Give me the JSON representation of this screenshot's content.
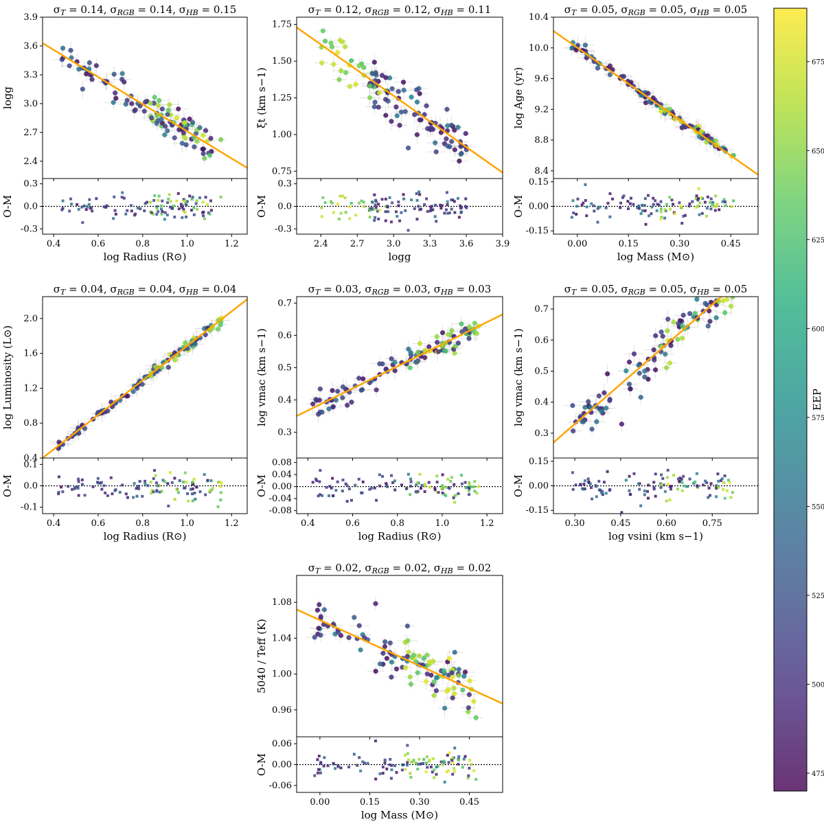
{
  "chart_data": [
    {
      "type": "scatter",
      "title": "σT = 0.14, σRGB = 0.14, σHB = 0.15",
      "title_parts": {
        "t": "0.14",
        "rgb": "0.14",
        "hb": "0.15"
      },
      "xlabel": "log Radius (R⊙)",
      "ylabel": "logg",
      "resid_label": "O-M",
      "xlim": [
        0.35,
        1.27
      ],
      "ylim": [
        2.22,
        3.9
      ],
      "rlim": [
        -0.37,
        0.37
      ],
      "xticks": [
        "0.4",
        "0.6",
        "0.8",
        "1.0",
        "1.2"
      ],
      "yticks": [
        "2.4",
        "2.7",
        "3.0",
        "3.3",
        "3.6",
        "3.9"
      ],
      "rticks": [
        "-0.3",
        "0.0",
        "0.3"
      ],
      "fit_line": [
        [
          0.35,
          3.63
        ],
        [
          1.27,
          2.33
        ]
      ],
      "scatter": 0.14,
      "trend": "down"
    },
    {
      "type": "scatter",
      "title": "σT = 0.12, σRGB = 0.12, σHB = 0.11",
      "title_parts": {
        "t": "0.12",
        "rgb": "0.12",
        "hb": "0.11"
      },
      "xlabel": "logg",
      "ylabel": "ξt (km s−1)",
      "resid_label": "O-M",
      "xlim": [
        2.2,
        3.9
      ],
      "ylim": [
        0.7,
        1.8
      ],
      "rlim": [
        -0.37,
        0.37
      ],
      "xticks": [
        "2.4",
        "2.7",
        "3.0",
        "3.3",
        "3.6",
        "3.9"
      ],
      "yticks": [
        "0.75",
        "1.00",
        "1.25",
        "1.50",
        "1.75"
      ],
      "rticks": [
        "-0.3",
        "0.0",
        "0.3"
      ],
      "fit_line": [
        [
          2.2,
          1.73
        ],
        [
          3.9,
          0.74
        ]
      ],
      "scatter": 0.12,
      "trend": "down"
    },
    {
      "type": "scatter",
      "title": "σT = 0.05, σRGB = 0.05, σHB = 0.05",
      "title_parts": {
        "t": "0.05",
        "rgb": "0.05",
        "hb": "0.05"
      },
      "xlabel": "log Mass (M⊙)",
      "ylabel": "log Age (yr)",
      "resid_label": "O-M",
      "xlim": [
        -0.07,
        0.53
      ],
      "ylim": [
        8.3,
        10.4
      ],
      "rlim": [
        -0.17,
        0.17
      ],
      "xticks": [
        "0.00",
        "0.15",
        "0.30",
        "0.45"
      ],
      "yticks": [
        "8.4",
        "8.8",
        "9.2",
        "9.6",
        "10.0",
        "10.4"
      ],
      "rticks": [
        "-0.15",
        "0.00",
        "0.15"
      ],
      "fit_line": [
        [
          -0.07,
          10.22
        ],
        [
          0.53,
          8.35
        ]
      ],
      "scatter": 0.05,
      "trend": "down"
    },
    {
      "type": "scatter",
      "title": "σT = 0.04, σRGB = 0.04, σHB = 0.04",
      "title_parts": {
        "t": "0.04",
        "rgb": "0.04",
        "hb": "0.04"
      },
      "xlabel": "log Radius (R⊙)",
      "ylabel": "log Luminosity (L⊙)",
      "resid_label": "O-M",
      "xlim": [
        0.35,
        1.27
      ],
      "ylim": [
        0.4,
        2.25
      ],
      "rlim": [
        -0.13,
        0.13
      ],
      "xticks": [
        "0.4",
        "0.6",
        "0.8",
        "1.0",
        "1.2"
      ],
      "yticks": [
        "0.4",
        "0.8",
        "1.2",
        "1.6",
        "2.0"
      ],
      "rticks": [
        "-0.1",
        "0.0",
        "0.1"
      ],
      "fit_line": [
        [
          0.35,
          0.4
        ],
        [
          1.27,
          2.22
        ]
      ],
      "scatter": 0.04,
      "trend": "up"
    },
    {
      "type": "scatter",
      "title": "σT = 0.03, σRGB = 0.03, σHB = 0.03",
      "title_parts": {
        "t": "0.03",
        "rgb": "0.03",
        "hb": "0.03"
      },
      "xlabel": "log Radius (R⊙)",
      "ylabel": "log vmac (km s−1)",
      "resid_label": "O-M",
      "xlim": [
        0.35,
        1.27
      ],
      "ylim": [
        0.22,
        0.72
      ],
      "rlim": [
        -0.09,
        0.095
      ],
      "xticks": [
        "0.4",
        "0.6",
        "0.8",
        "1.0",
        "1.2"
      ],
      "yticks": [
        "0.3",
        "0.4",
        "0.5",
        "0.6",
        "0.7"
      ],
      "rticks": [
        "-0.08",
        "-0.04",
        "0.00",
        "0.04",
        "0.08"
      ],
      "fit_line": [
        [
          0.35,
          0.35
        ],
        [
          1.27,
          0.665
        ]
      ],
      "scatter": 0.03,
      "trend": "up"
    },
    {
      "type": "scatter",
      "title": "σT = 0.05, σRGB = 0.05, σHB = 0.05",
      "title_parts": {
        "t": "0.05",
        "rgb": "0.05",
        "hb": "0.05"
      },
      "xlabel": "log vsini (km s−1)",
      "ylabel": "log vmac (km s−1)",
      "resid_label": "O-M",
      "xlim": [
        0.23,
        0.9
      ],
      "ylim": [
        0.22,
        0.74
      ],
      "rlim": [
        -0.17,
        0.17
      ],
      "xticks": [
        "0.30",
        "0.45",
        "0.60",
        "0.75"
      ],
      "yticks": [
        "0.3",
        "0.4",
        "0.5",
        "0.6",
        "0.7"
      ],
      "rticks": [
        "-0.15",
        "0.00",
        "0.15"
      ],
      "fit_line": [
        [
          0.23,
          0.27
        ],
        [
          0.78,
          0.74
        ]
      ],
      "scatter": 0.05,
      "trend": "up"
    },
    {
      "type": "scatter",
      "title": "σT = 0.02, σRGB = 0.02, σHB = 0.02",
      "title_parts": {
        "t": "0.02",
        "rgb": "0.02",
        "hb": "0.02"
      },
      "xlabel": "log Mass (M⊙)",
      "ylabel": "5040 / Teff (K)",
      "resid_label": "O-M",
      "xlim": [
        -0.07,
        0.55
      ],
      "ylim": [
        0.93,
        1.11
      ],
      "rlim": [
        -0.08,
        0.08
      ],
      "xticks": [
        "0.00",
        "0.15",
        "0.30",
        "0.45"
      ],
      "yticks": [
        "0.96",
        "1.00",
        "1.04",
        "1.08"
      ],
      "rticks": [
        "-0.06",
        "0.00",
        "0.06"
      ],
      "fit_line": [
        [
          -0.07,
          1.072
        ],
        [
          0.55,
          0.967
        ]
      ],
      "scatter": 0.02,
      "trend": "down"
    }
  ],
  "colorbar": {
    "label": "EEP",
    "range": [
      470,
      690
    ],
    "ticks": [
      "475",
      "500",
      "525",
      "550",
      "575",
      "600",
      "625",
      "650",
      "675"
    ],
    "colormap": "viridis"
  },
  "colors": {
    "fit_line": "#ffa500",
    "zero_line": "#000000",
    "error_bars": "#d8d8d8"
  }
}
